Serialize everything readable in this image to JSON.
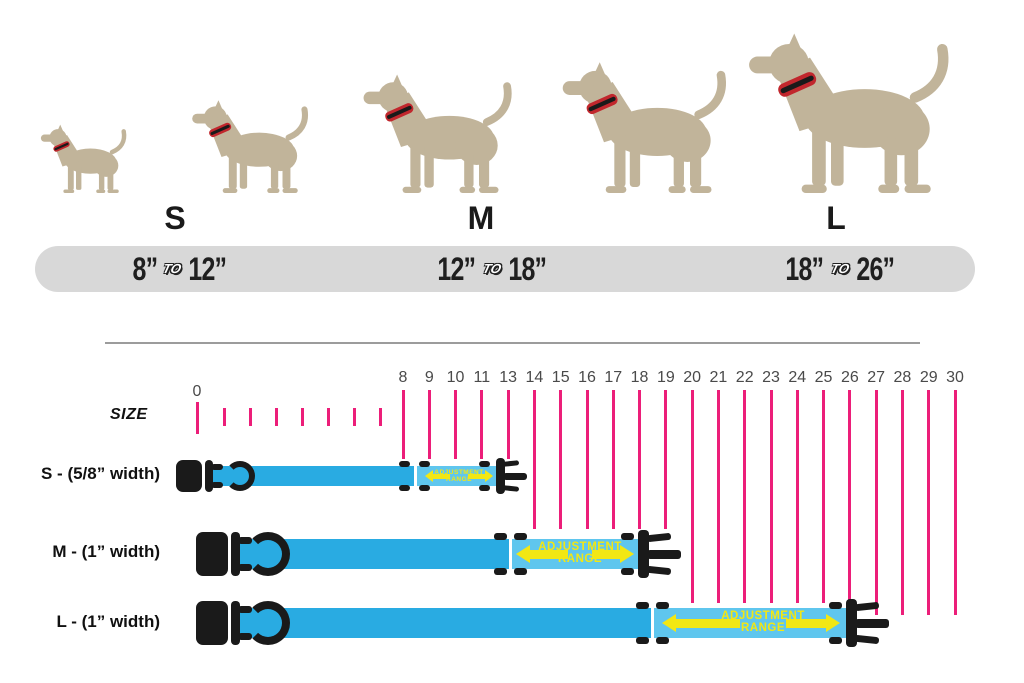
{
  "size_guide": {
    "sizes": [
      {
        "letter": "S",
        "from": "8”",
        "to_word": "TO",
        "to": "12”"
      },
      {
        "letter": "M",
        "from": "12”",
        "to_word": "TO",
        "to": "18”"
      },
      {
        "letter": "L",
        "from": "18”",
        "to_word": "TO",
        "to": "26”"
      }
    ]
  },
  "ruler": {
    "axis_label": "SIZE",
    "zero_label": "0",
    "minor_ticks_between": 7,
    "marks": [
      {
        "label": "8",
        "reach": "s"
      },
      {
        "label": "9",
        "reach": "s"
      },
      {
        "label": "10",
        "reach": "s"
      },
      {
        "label": "11",
        "reach": "s"
      },
      {
        "label": "13",
        "reach": "s"
      },
      {
        "label": "14",
        "reach": "m"
      },
      {
        "label": "15",
        "reach": "m"
      },
      {
        "label": "16",
        "reach": "m"
      },
      {
        "label": "17",
        "reach": "m"
      },
      {
        "label": "18",
        "reach": "m"
      },
      {
        "label": "19",
        "reach": "m"
      },
      {
        "label": "20",
        "reach": "l"
      },
      {
        "label": "21",
        "reach": "l"
      },
      {
        "label": "22",
        "reach": "l"
      },
      {
        "label": "23",
        "reach": "l"
      },
      {
        "label": "24",
        "reach": "l"
      },
      {
        "label": "25",
        "reach": "l"
      },
      {
        "label": "26",
        "reach": "l"
      },
      {
        "label": "27",
        "reach": "l-far"
      },
      {
        "label": "28",
        "reach": "l-far"
      },
      {
        "label": "29",
        "reach": "l-far"
      },
      {
        "label": "30",
        "reach": "l-far"
      }
    ]
  },
  "collars": [
    {
      "name": "S",
      "label": "S - (5/8” width)",
      "adjustment_line1": "ADJUSTMENT",
      "adjustment_line2": "RANGE"
    },
    {
      "name": "M",
      "label": "M - (1” width)",
      "adjustment_line1": "ADJUSTMENT",
      "adjustment_line2": "RANGE"
    },
    {
      "name": "L",
      "label": "L - (1” width)",
      "adjustment_line1": "ADJUSTMENT",
      "adjustment_line2": "RANGE"
    }
  ],
  "colors": {
    "dog_tan": "#C1B49A",
    "collar_red": "#C1272D",
    "bar_gray": "#D8D8D8",
    "line_pink": "#EC1E79",
    "strap_blue": "#29ABE2",
    "strap_light_blue": "#5FC6EE",
    "accent_yellow": "#F2E714",
    "buckle_black": "#1A1A1A"
  }
}
